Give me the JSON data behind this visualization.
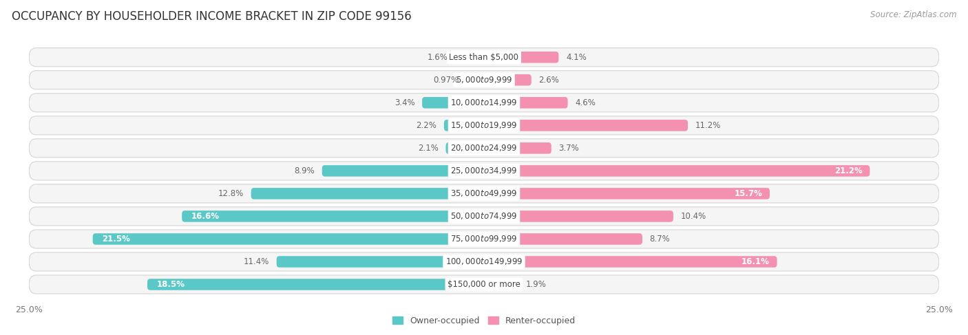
{
  "title": "OCCUPANCY BY HOUSEHOLDER INCOME BRACKET IN ZIP CODE 99156",
  "source": "Source: ZipAtlas.com",
  "categories": [
    "Less than $5,000",
    "$5,000 to $9,999",
    "$10,000 to $14,999",
    "$15,000 to $19,999",
    "$20,000 to $24,999",
    "$25,000 to $34,999",
    "$35,000 to $49,999",
    "$50,000 to $74,999",
    "$75,000 to $99,999",
    "$100,000 to $149,999",
    "$150,000 or more"
  ],
  "owner_values": [
    1.6,
    0.97,
    3.4,
    2.2,
    2.1,
    8.9,
    12.8,
    16.6,
    21.5,
    11.4,
    18.5
  ],
  "renter_values": [
    4.1,
    2.6,
    4.6,
    11.2,
    3.7,
    21.2,
    15.7,
    10.4,
    8.7,
    16.1,
    1.9
  ],
  "owner_color": "#5bc8c8",
  "renter_color": "#f490b0",
  "owner_label": "Owner-occupied",
  "renter_label": "Renter-occupied",
  "xlim": 25.0,
  "background_color": "#ffffff",
  "row_bg_even": "#f7f7f7",
  "row_bg_odd": "#ececec",
  "row_border": "#dddddd",
  "title_fontsize": 12,
  "source_fontsize": 8.5,
  "value_fontsize": 8.5,
  "category_fontsize": 8.5,
  "legend_fontsize": 9
}
